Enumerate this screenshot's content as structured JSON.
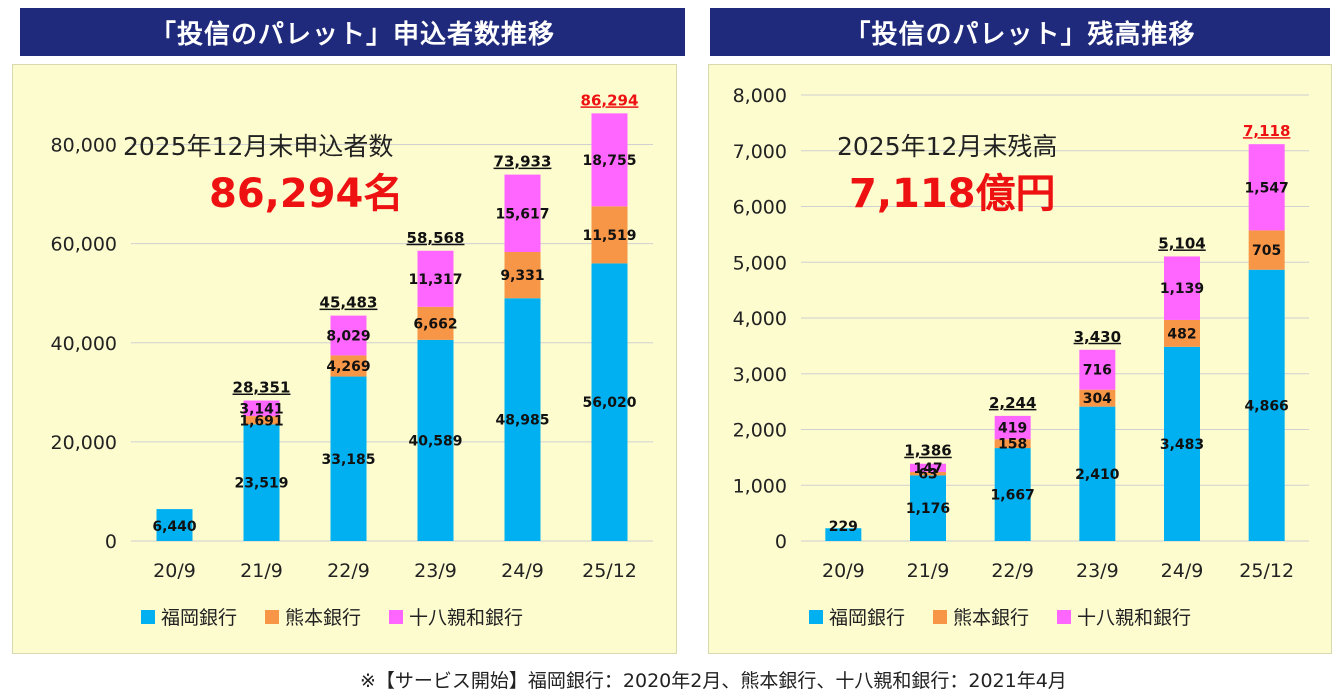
{
  "colors": {
    "fukuoka": "#00b0f0",
    "kumamoto": "#f79646",
    "juhachi": "#ff66ff",
    "header_bg": "#1f2a7c",
    "chart_bg": "#fdfccf",
    "highlight": "#ee1111"
  },
  "left": {
    "title": "「投信のパレット」申込者数推移",
    "caption": "2025年12月末申込者数",
    "headline": "86,294名"
  },
  "right": {
    "title": "「投信のパレット」残高推移",
    "caption": "2025年12月末残高",
    "headline": "7,118億円"
  },
  "legend": {
    "fukuoka": "福岡銀行",
    "kumamoto": "熊本銀行",
    "juhachi": "十八親和銀行"
  },
  "footnote": "※【サービス開始】福岡銀行：2020年2月、熊本銀行、十八親和銀行：2021年4月",
  "chart_data": [
    {
      "type": "bar",
      "stacked": true,
      "title": "「投信のパレット」申込者数推移",
      "categories": [
        "20/9",
        "21/9",
        "22/9",
        "23/9",
        "24/9",
        "25/12"
      ],
      "ylim": [
        0,
        90000
      ],
      "yticks": [
        0,
        20000,
        40000,
        60000,
        80000
      ],
      "ytick_labels": [
        "0",
        "20,000",
        "40,000",
        "60,000",
        "80,000"
      ],
      "series": [
        {
          "name": "福岡銀行",
          "values": [
            6440,
            23519,
            33185,
            40589,
            48985,
            56020
          ],
          "labels": [
            "6,440",
            "23,519",
            "33,185",
            "40,589",
            "48,985",
            "56,020"
          ]
        },
        {
          "name": "熊本銀行",
          "values": [
            0,
            1691,
            4269,
            6662,
            9331,
            11519
          ],
          "labels": [
            "",
            "1,691",
            "4,269",
            "6,662",
            "9,331",
            "11,519"
          ]
        },
        {
          "name": "十八親和銀行",
          "values": [
            0,
            3141,
            8029,
            11317,
            15617,
            18755
          ],
          "labels": [
            "",
            "3,141",
            "8,029",
            "11,317",
            "15,617",
            "18,755"
          ]
        }
      ],
      "totals": [
        "",
        "28,351",
        "45,483",
        "58,568",
        "73,933",
        "86,294"
      ]
    },
    {
      "type": "bar",
      "stacked": true,
      "title": "「投信のパレット」残高推移",
      "categories": [
        "20/9",
        "21/9",
        "22/9",
        "23/9",
        "24/9",
        "25/12"
      ],
      "ylim": [
        0,
        8000
      ],
      "yticks": [
        0,
        1000,
        2000,
        3000,
        4000,
        5000,
        6000,
        7000,
        8000
      ],
      "ytick_labels": [
        "0",
        "1,000",
        "2,000",
        "3,000",
        "4,000",
        "5,000",
        "6,000",
        "7,000",
        "8,000"
      ],
      "series": [
        {
          "name": "福岡銀行",
          "values": [
            229,
            1176,
            1667,
            2410,
            3483,
            4866
          ],
          "labels": [
            "229",
            "1,176",
            "1,667",
            "2,410",
            "3,483",
            "4,866"
          ]
        },
        {
          "name": "熊本銀行",
          "values": [
            0,
            63,
            158,
            304,
            482,
            705
          ],
          "labels": [
            "",
            "63",
            "158",
            "304",
            "482",
            "705"
          ]
        },
        {
          "name": "十八親和銀行",
          "values": [
            0,
            147,
            419,
            716,
            1139,
            1547
          ],
          "labels": [
            "",
            "147",
            "419",
            "716",
            "1,139",
            "1,547"
          ]
        }
      ],
      "totals": [
        "",
        "1,386",
        "2,244",
        "3,430",
        "5,104",
        "7,118"
      ]
    }
  ]
}
